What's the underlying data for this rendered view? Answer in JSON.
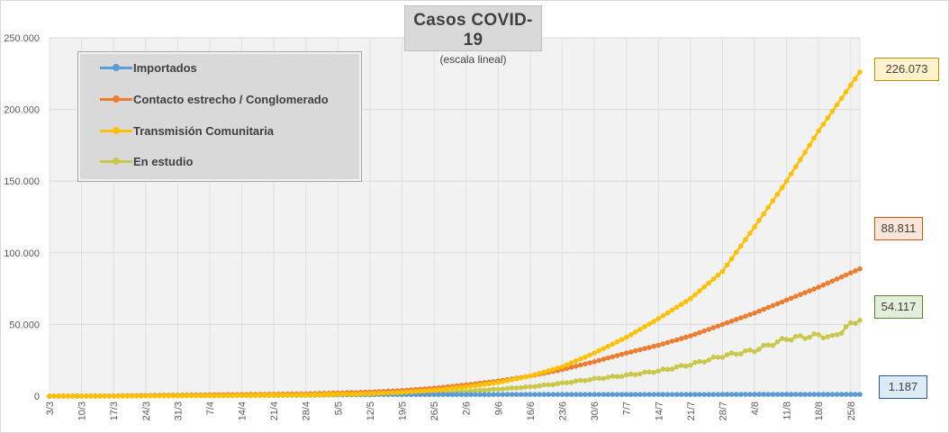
{
  "chart_data": {
    "type": "line",
    "title": "Casos COVID-19",
    "subtitle": "(escala lineal)",
    "xlabel": "",
    "ylabel": "",
    "ylim": [
      0,
      250000
    ],
    "yticks": [
      0,
      50000,
      100000,
      150000,
      200000,
      250000
    ],
    "ytick_labels": [
      "0",
      "50.000",
      "100.000",
      "150.000",
      "200.000",
      "250.000"
    ],
    "xtick_labels": [
      "3/3",
      "10/3",
      "17/3",
      "24/3",
      "31/3",
      "7/4",
      "14/4",
      "21/4",
      "28/4",
      "5/5",
      "12/5",
      "19/5",
      "26/5",
      "2/6",
      "9/6",
      "16/6",
      "23/6",
      "30/6",
      "7/7",
      "14/7",
      "21/7",
      "28/7",
      "4/8",
      "11/8",
      "18/8",
      "25/8"
    ],
    "x_start": "3/3",
    "x_end": "27/8",
    "grid": true,
    "legend_position": "top-left",
    "series": [
      {
        "name": "Importados",
        "color": "#5b9bd5",
        "final_label": "1.187",
        "x": [
          "3/3",
          "17/3",
          "31/3",
          "14/4",
          "28/4",
          "12/5",
          "26/5",
          "9/6",
          "23/6",
          "7/7",
          "21/7",
          "4/8",
          "18/8",
          "27/8"
        ],
        "values": [
          2,
          150,
          650,
          950,
          1030,
          1060,
          1080,
          1100,
          1120,
          1140,
          1155,
          1170,
          1180,
          1187
        ]
      },
      {
        "name": "Contacto estrecho / Conglomerado",
        "color": "#ed7d31",
        "final_label": "88.811",
        "x": [
          "3/3",
          "17/3",
          "31/3",
          "14/4",
          "28/4",
          "12/5",
          "19/5",
          "26/5",
          "2/6",
          "9/6",
          "16/6",
          "23/6",
          "30/6",
          "7/7",
          "14/7",
          "21/7",
          "28/7",
          "4/8",
          "11/8",
          "18/8",
          "27/8"
        ],
        "values": [
          0,
          80,
          600,
          1100,
          1600,
          2800,
          3900,
          5500,
          7800,
          10500,
          14000,
          18500,
          24000,
          30000,
          35500,
          42000,
          50000,
          58000,
          67000,
          76000,
          88811
        ]
      },
      {
        "name": "Transmisión Comunitaria",
        "color": "#ffc000",
        "final_label": "226.073",
        "x": [
          "3/3",
          "17/3",
          "31/3",
          "14/4",
          "28/4",
          "12/5",
          "19/5",
          "26/5",
          "2/6",
          "9/6",
          "16/6",
          "23/6",
          "30/6",
          "7/7",
          "14/7",
          "21/7",
          "28/7",
          "4/8",
          "11/8",
          "18/8",
          "27/8"
        ],
        "values": [
          0,
          50,
          250,
          500,
          900,
          1700,
          2600,
          4100,
          6500,
          9500,
          14000,
          20500,
          30000,
          41000,
          54000,
          68000,
          87000,
          118000,
          150000,
          185000,
          226073
        ]
      },
      {
        "name": "En estudio",
        "color": "#c9c84b",
        "final_label": "54.117",
        "x": [
          "3/3",
          "17/3",
          "31/3",
          "14/4",
          "28/4",
          "12/5",
          "19/5",
          "26/5",
          "2/6",
          "9/6",
          "16/6",
          "23/6",
          "30/6",
          "7/7",
          "14/7",
          "21/7",
          "28/7",
          "4/8",
          "11/8",
          "18/8",
          "21/8",
          "27/8"
        ],
        "values": [
          0,
          30,
          150,
          300,
          450,
          900,
          1500,
          2300,
          3300,
          4800,
          6500,
          9000,
          12000,
          14500,
          17500,
          22000,
          28000,
          32000,
          40000,
          42500,
          41000,
          54117
        ]
      }
    ]
  }
}
